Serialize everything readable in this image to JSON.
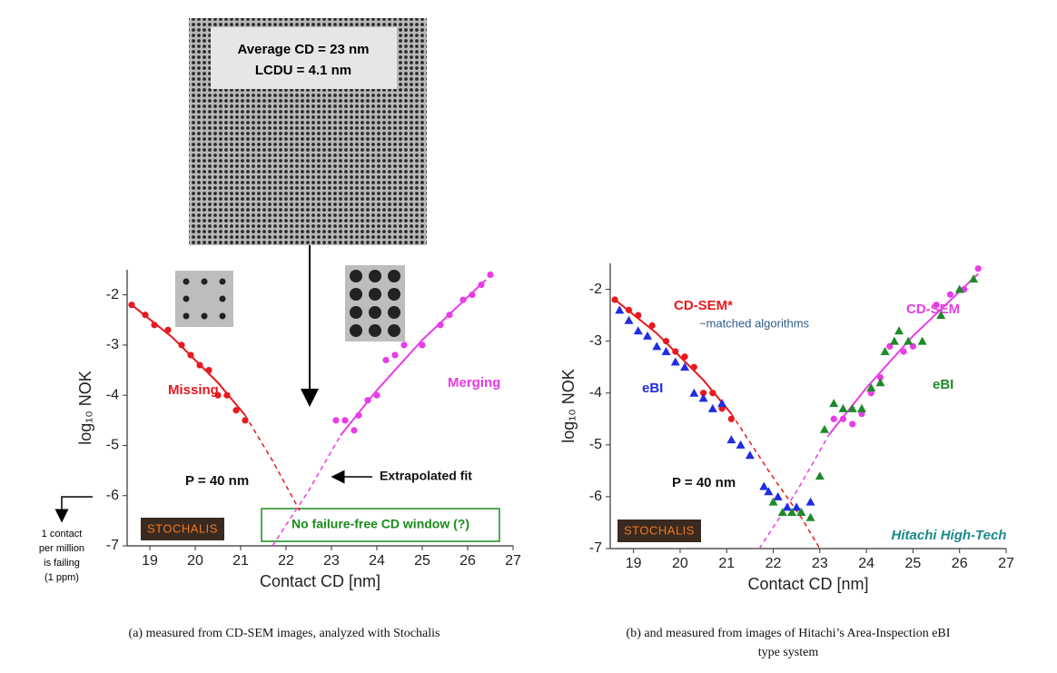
{
  "figure": {
    "sem_text": [
      "Average CD = 23 nm",
      "LCDU = 4.1 nm"
    ],
    "note": [
      "1 contact",
      "per million",
      "is failing",
      "(1 ppm)"
    ],
    "captions": [
      [
        "(a)  measured from CD-SEM images, analyzed with Stochalis"
      ],
      [
        "(b) and measured from images of Hitachi’s Area-Inspection eBI",
        "type system"
      ]
    ]
  },
  "chart_data": [
    {
      "type": "scatter",
      "xlabel": "Contact CD  [nm]",
      "ylabel": "log₁₀ NOK",
      "xlim": [
        18.5,
        27
      ],
      "ylim": [
        -7,
        -1.5
      ],
      "xticks": [
        19,
        20,
        21,
        22,
        23,
        24,
        25,
        26,
        27
      ],
      "yticks": [
        -2,
        -3,
        -4,
        -5,
        -6,
        -7
      ],
      "logo": "STOCHALIS",
      "series": [
        {
          "name": "Missing",
          "color": "#e8191f",
          "marker": "circle",
          "x": [
            18.6,
            18.9,
            19.1,
            19.4,
            19.7,
            19.9,
            20.1,
            20.3,
            20.5,
            20.7,
            20.9,
            21.1
          ],
          "values": [
            -2.2,
            -2.4,
            -2.6,
            -2.7,
            -3.0,
            -3.2,
            -3.4,
            -3.5,
            -4.0,
            -4.0,
            -4.3,
            -4.5
          ]
        },
        {
          "name": "Merging",
          "color": "#e83ce8",
          "marker": "circle",
          "x": [
            23.1,
            23.3,
            23.5,
            23.6,
            23.8,
            24.0,
            24.2,
            24.4,
            24.6,
            25.0,
            25.4,
            25.6,
            25.9,
            26.1,
            26.3,
            26.5
          ],
          "values": [
            -4.5,
            -4.5,
            -4.7,
            -4.4,
            -4.1,
            -4.0,
            -3.3,
            -3.2,
            -3.0,
            -3.0,
            -2.6,
            -2.4,
            -2.1,
            -2.0,
            -1.8,
            -1.6
          ]
        }
      ],
      "fits": [
        {
          "color": "#e8191f",
          "dashed": false,
          "x": [
            18.6,
            19.5,
            20.5,
            21.1
          ],
          "values": [
            -2.2,
            -2.85,
            -3.75,
            -4.4
          ]
        },
        {
          "color": "#e8191f",
          "dashed": true,
          "x": [
            21.1,
            21.7,
            22.3
          ],
          "values": [
            -4.4,
            -5.3,
            -6.3
          ]
        },
        {
          "color": "#e83ce8",
          "dashed": false,
          "x": [
            23.2,
            24.0,
            25.0,
            26.4
          ],
          "values": [
            -4.8,
            -3.9,
            -2.9,
            -1.7
          ]
        },
        {
          "color": "#e83ce8",
          "dashed": true,
          "x": [
            21.7,
            22.5,
            23.2
          ],
          "values": [
            -7.0,
            -5.9,
            -4.8
          ]
        }
      ],
      "annotations": [
        {
          "text": "P = 40 nm",
          "color": "#111"
        },
        {
          "text": "Extrapolated fit",
          "color": "#111"
        },
        {
          "text": "No failure-free CD window (?)",
          "color": "#1a8a1a"
        }
      ]
    },
    {
      "type": "scatter",
      "xlabel": "Contact CD  [nm]",
      "ylabel": "log₁₀ NOK",
      "xlim": [
        18.5,
        27
      ],
      "ylim": [
        -7,
        -1.5
      ],
      "xticks": [
        19,
        20,
        21,
        22,
        23,
        24,
        25,
        26,
        27
      ],
      "yticks": [
        -2,
        -3,
        -4,
        -5,
        -6,
        -7
      ],
      "logo": "STOCHALIS",
      "series": [
        {
          "name": "CD-SEM*",
          "color": "#e8191f",
          "marker": "circle",
          "x": [
            18.6,
            18.9,
            19.1,
            19.4,
            19.7,
            19.9,
            20.1,
            20.3,
            20.5,
            20.7,
            20.9,
            21.1
          ],
          "values": [
            -2.2,
            -2.4,
            -2.5,
            -2.7,
            -3.0,
            -3.2,
            -3.3,
            -3.5,
            -4.0,
            -4.0,
            -4.3,
            -4.5
          ]
        },
        {
          "name": "eBI",
          "color": "#1f2de0",
          "marker": "triangle",
          "x": [
            18.7,
            18.9,
            19.1,
            19.3,
            19.5,
            19.7,
            19.9,
            20.1,
            20.3,
            20.5,
            20.7,
            20.9,
            21.1,
            21.3,
            21.5,
            21.8,
            21.9,
            22.1,
            22.3,
            22.5,
            22.6,
            22.8
          ],
          "values": [
            -2.4,
            -2.6,
            -2.8,
            -2.9,
            -3.1,
            -3.2,
            -3.4,
            -3.5,
            -4.0,
            -4.1,
            -4.3,
            -4.2,
            -4.9,
            -5.0,
            -5.2,
            -5.8,
            -5.9,
            -6.0,
            -6.2,
            -6.2,
            -6.3,
            -6.1
          ]
        },
        {
          "name": "CD-SEM",
          "color": "#e83ce8",
          "marker": "circle",
          "x": [
            23.3,
            23.5,
            23.7,
            23.9,
            24.1,
            24.3,
            24.5,
            24.8,
            25.0,
            25.5,
            25.8,
            26.1,
            26.4
          ],
          "values": [
            -4.5,
            -4.5,
            -4.6,
            -4.4,
            -4.0,
            -3.7,
            -3.1,
            -3.2,
            -3.1,
            -2.3,
            -2.1,
            -2.0,
            -1.6
          ]
        },
        {
          "name": "eBI",
          "color": "#1e8a2a",
          "marker": "triangle",
          "x": [
            22.0,
            22.2,
            22.4,
            22.6,
            22.8,
            23.0,
            23.1,
            23.3,
            23.5,
            23.7,
            23.9,
            24.1,
            24.3,
            24.4,
            24.6,
            24.7,
            24.9,
            25.2,
            25.6,
            26.0,
            26.3
          ],
          "values": [
            -6.1,
            -6.3,
            -6.3,
            -6.3,
            -6.4,
            -5.6,
            -4.7,
            -4.2,
            -4.3,
            -4.3,
            -4.3,
            -3.9,
            -3.8,
            -3.2,
            -3.0,
            -2.8,
            -3.0,
            -3.0,
            -2.5,
            -2.0,
            -1.8
          ]
        }
      ],
      "fits": [
        {
          "color": "#e8191f",
          "dashed": false,
          "x": [
            18.6,
            19.5,
            20.5,
            21.1
          ],
          "values": [
            -2.2,
            -2.85,
            -3.75,
            -4.4
          ]
        },
        {
          "color": "#e8191f",
          "dashed": true,
          "x": [
            21.1,
            21.9,
            22.6,
            23.0
          ],
          "values": [
            -4.4,
            -5.5,
            -6.4,
            -7.0
          ]
        },
        {
          "color": "#e83ce8",
          "dashed": false,
          "x": [
            23.2,
            24.0,
            25.0,
            26.4
          ],
          "values": [
            -4.8,
            -3.9,
            -2.9,
            -1.7
          ]
        },
        {
          "color": "#e83ce8",
          "dashed": true,
          "x": [
            21.7,
            22.5,
            23.2
          ],
          "values": [
            -7.0,
            -5.9,
            -4.8
          ]
        }
      ],
      "annotations": [
        {
          "text": "~matched algorithms",
          "color": "#2e5c8a"
        },
        {
          "text": "P = 40 nm",
          "color": "#111"
        },
        {
          "text": "Hitachi High-Tech",
          "color": "#1a8a8a"
        }
      ]
    }
  ]
}
